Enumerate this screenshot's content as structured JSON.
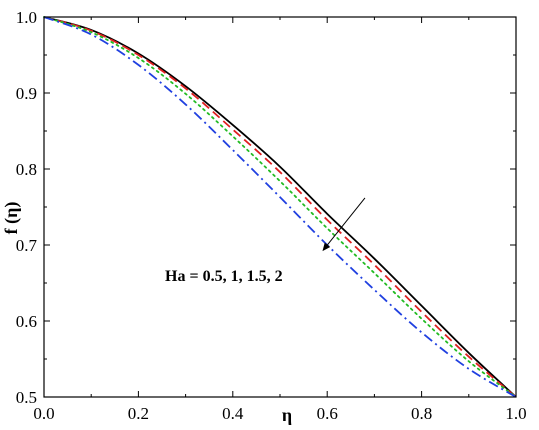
{
  "chart_data": {
    "type": "line",
    "title": "",
    "xlabel": "η",
    "ylabel": "f (η)",
    "xlim": [
      0.0,
      1.0
    ],
    "ylim": [
      0.5,
      1.0
    ],
    "xticks": [
      0.0,
      0.2,
      0.4,
      0.6,
      0.8,
      1.0
    ],
    "yticks": [
      0.5,
      0.6,
      0.7,
      0.8,
      0.9,
      1.0
    ],
    "xtick_labels": [
      "0.0",
      "0.2",
      "0.4",
      "0.6",
      "0.8",
      "1.0"
    ],
    "ytick_labels": [
      "0.5",
      "0.6",
      "0.7",
      "0.8",
      "0.9",
      "1.0"
    ],
    "grid": false,
    "legend": "none",
    "annotation": {
      "text": "Ha = 0.5, 1, 1.5, 2",
      "arrow_from": [
        0.68,
        0.762
      ],
      "arrow_to": [
        0.59,
        0.692
      ]
    },
    "x": [
      0.0,
      0.1,
      0.2,
      0.3,
      0.4,
      0.5,
      0.6,
      0.7,
      0.8,
      0.9,
      1.0
    ],
    "series": [
      {
        "color": "#000000",
        "dash": "solid",
        "values": [
          1.0,
          0.983,
          0.952,
          0.909,
          0.858,
          0.803,
          0.741,
          0.682,
          0.62,
          0.558,
          0.5
        ]
      },
      {
        "color": "#e02020",
        "dash": "dash",
        "values": [
          1.0,
          0.982,
          0.95,
          0.906,
          0.852,
          0.796,
          0.733,
          0.674,
          0.612,
          0.553,
          0.5
        ]
      },
      {
        "color": "#22bb22",
        "dash": "dot",
        "values": [
          1.0,
          0.98,
          0.946,
          0.899,
          0.843,
          0.784,
          0.722,
          0.663,
          0.603,
          0.547,
          0.5
        ]
      },
      {
        "color": "#2040e0",
        "dash": "dashdot",
        "values": [
          1.0,
          0.977,
          0.937,
          0.885,
          0.825,
          0.763,
          0.7,
          0.641,
          0.585,
          0.537,
          0.5
        ]
      }
    ]
  }
}
